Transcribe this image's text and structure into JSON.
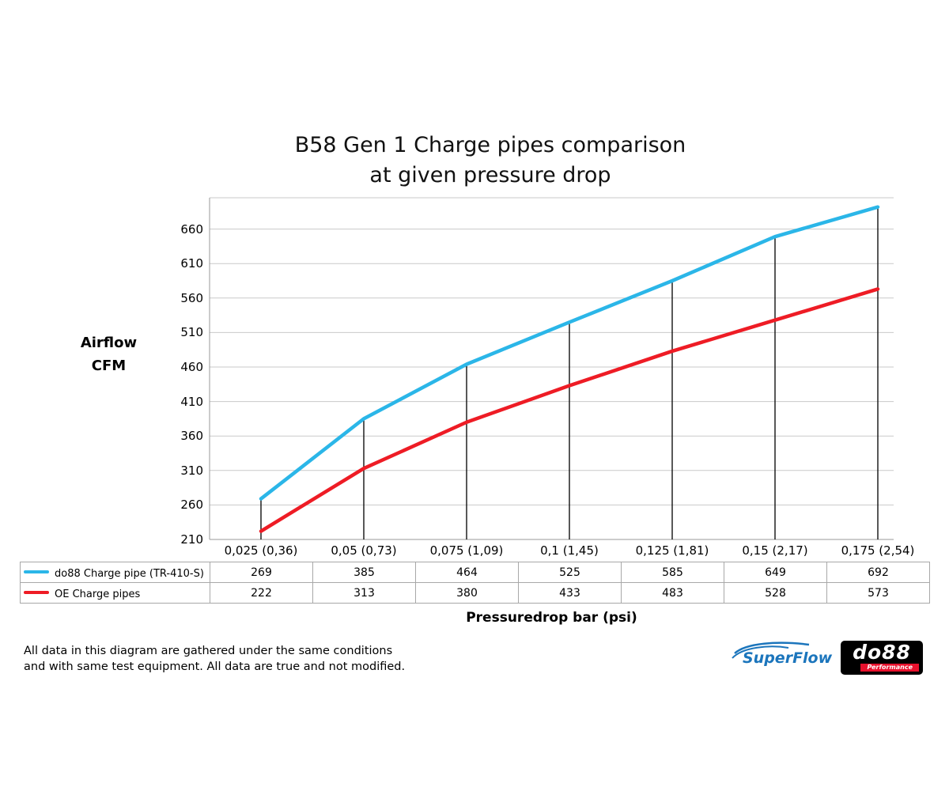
{
  "chart": {
    "title_line1": "B58 Gen 1 Charge pipes comparison",
    "title_line2": "at given pressure drop",
    "y_axis_title_line1": "Airflow",
    "y_axis_title_line2": "CFM",
    "x_axis_title": "Pressuredrop bar (psi)"
  },
  "chart_data": {
    "type": "line",
    "title": "B58 Gen 1 Charge pipes comparison at given pressure drop",
    "xlabel": "Pressuredrop bar (psi)",
    "ylabel": "Airflow CFM",
    "categories": [
      "0,025 (0,36)",
      "0,05 (0,73)",
      "0,075 (1,09)",
      "0,1 (1,45)",
      "0,125 (1,81)",
      "0,15 (2,17)",
      "0,175 (2,54)"
    ],
    "y_ticks": [
      210,
      260,
      310,
      360,
      410,
      460,
      510,
      560,
      610,
      660
    ],
    "ylim": [
      210,
      705
    ],
    "grid": true,
    "legend_position": "bottom-table",
    "series": [
      {
        "name": "do88 Charge pipe (TR-410-S)",
        "color": "#2bb6e8",
        "values": [
          269,
          385,
          464,
          525,
          585,
          649,
          692
        ]
      },
      {
        "name": "OE Charge pipes",
        "color": "#ee1c25",
        "values": [
          222,
          313,
          380,
          433,
          483,
          528,
          573
        ]
      }
    ]
  },
  "footer": {
    "line1": "All data in this diagram are gathered under the same conditions",
    "line2": "and with same test equipment. All data are true and not modified."
  },
  "logos": {
    "superflow": "SuperFlow",
    "do88": "do88",
    "do88_sub": "Performance"
  },
  "colors": {
    "series_do88": "#2bb6e8",
    "series_oe": "#ee1c25",
    "gridline": "#c9c9c9",
    "axis": "#9a9a9a",
    "marker_line": "#111111",
    "superflow_blue": "#1b75bc",
    "do88_red": "#e8112d"
  }
}
